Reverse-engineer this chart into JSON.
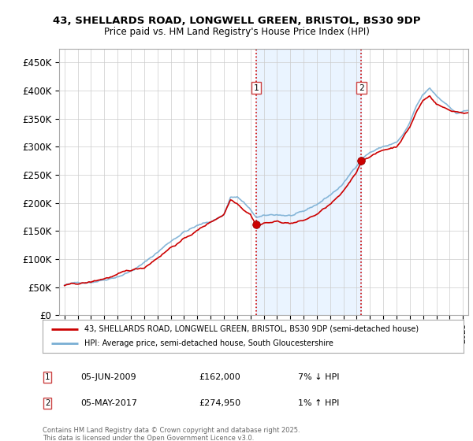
{
  "title1": "43, SHELLARDS ROAD, LONGWELL GREEN, BRISTOL, BS30 9DP",
  "title2": "Price paid vs. HM Land Registry's House Price Index (HPI)",
  "ylim": [
    0,
    475000
  ],
  "yticks": [
    0,
    50000,
    100000,
    150000,
    200000,
    250000,
    300000,
    350000,
    400000,
    450000
  ],
  "ytick_labels": [
    "£0",
    "£50K",
    "£100K",
    "£150K",
    "£200K",
    "£250K",
    "£300K",
    "£350K",
    "£400K",
    "£450K"
  ],
  "background_color": "#ffffff",
  "plot_bg_color": "#ffffff",
  "grid_color": "#cccccc",
  "purchase1_year": 2009.45,
  "purchase1_price": 162000,
  "purchase1_date": "05-JUN-2009",
  "purchase1_hpi_diff": "7% ↓ HPI",
  "purchase2_year": 2017.35,
  "purchase2_price": 274950,
  "purchase2_date": "05-MAY-2017",
  "purchase2_hpi_diff": "1% ↑ HPI",
  "legend_line1": "43, SHELLARDS ROAD, LONGWELL GREEN, BRISTOL, BS30 9DP (semi-detached house)",
  "legend_line2": "HPI: Average price, semi-detached house, South Gloucestershire",
  "footer": "Contains HM Land Registry data © Crown copyright and database right 2025.\nThis data is licensed under the Open Government Licence v3.0.",
  "hpi_color": "#7aafd4",
  "price_color": "#cc0000",
  "shade_color": "#ddeeff",
  "marker_color": "#cc0000",
  "xlim_left": 1994.6,
  "xlim_right": 2025.4
}
